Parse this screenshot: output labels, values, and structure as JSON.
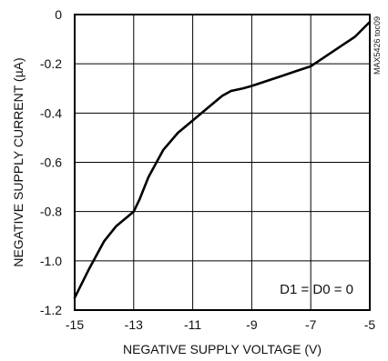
{
  "chart_data": {
    "type": "line",
    "xlabel": "NEGATIVE SUPPLY VOLTAGE (V)",
    "ylabel": "NEGATIVE SUPPLY CURRENT (µA)",
    "xlim": [
      -15,
      -5
    ],
    "ylim": [
      -1.2,
      0
    ],
    "x_ticks": [
      -15,
      -13,
      -11,
      -9,
      -7,
      -5
    ],
    "y_ticks": [
      0,
      -0.2,
      -0.4,
      -0.6,
      -0.8,
      -1.0,
      -1.2
    ],
    "x_tick_labels": [
      "-15",
      "-13",
      "-11",
      "-9",
      "-7",
      "-5"
    ],
    "y_tick_labels": [
      "0",
      "-0.2",
      "-0.4",
      "-0.6",
      "-0.8",
      "-1.0",
      "-1.2"
    ],
    "grid": true,
    "annotation": "D1 = D0 = 0",
    "side_label": "MAX5426 toc09",
    "series": [
      {
        "color": "#000000",
        "x": [
          -15,
          -14.5,
          -14,
          -13.6,
          -13.2,
          -13,
          -12.8,
          -12.5,
          -12,
          -11.5,
          -11,
          -10.5,
          -10,
          -9.7,
          -9.3,
          -9,
          -8.5,
          -8,
          -7.5,
          -7,
          -6.5,
          -6,
          -5.5,
          -5
        ],
        "y": [
          -1.15,
          -1.03,
          -0.92,
          -0.86,
          -0.82,
          -0.8,
          -0.75,
          -0.66,
          -0.55,
          -0.48,
          -0.43,
          -0.38,
          -0.33,
          -0.31,
          -0.3,
          -0.29,
          -0.27,
          -0.25,
          -0.23,
          -0.21,
          -0.17,
          -0.13,
          -0.09,
          -0.03
        ]
      }
    ]
  }
}
